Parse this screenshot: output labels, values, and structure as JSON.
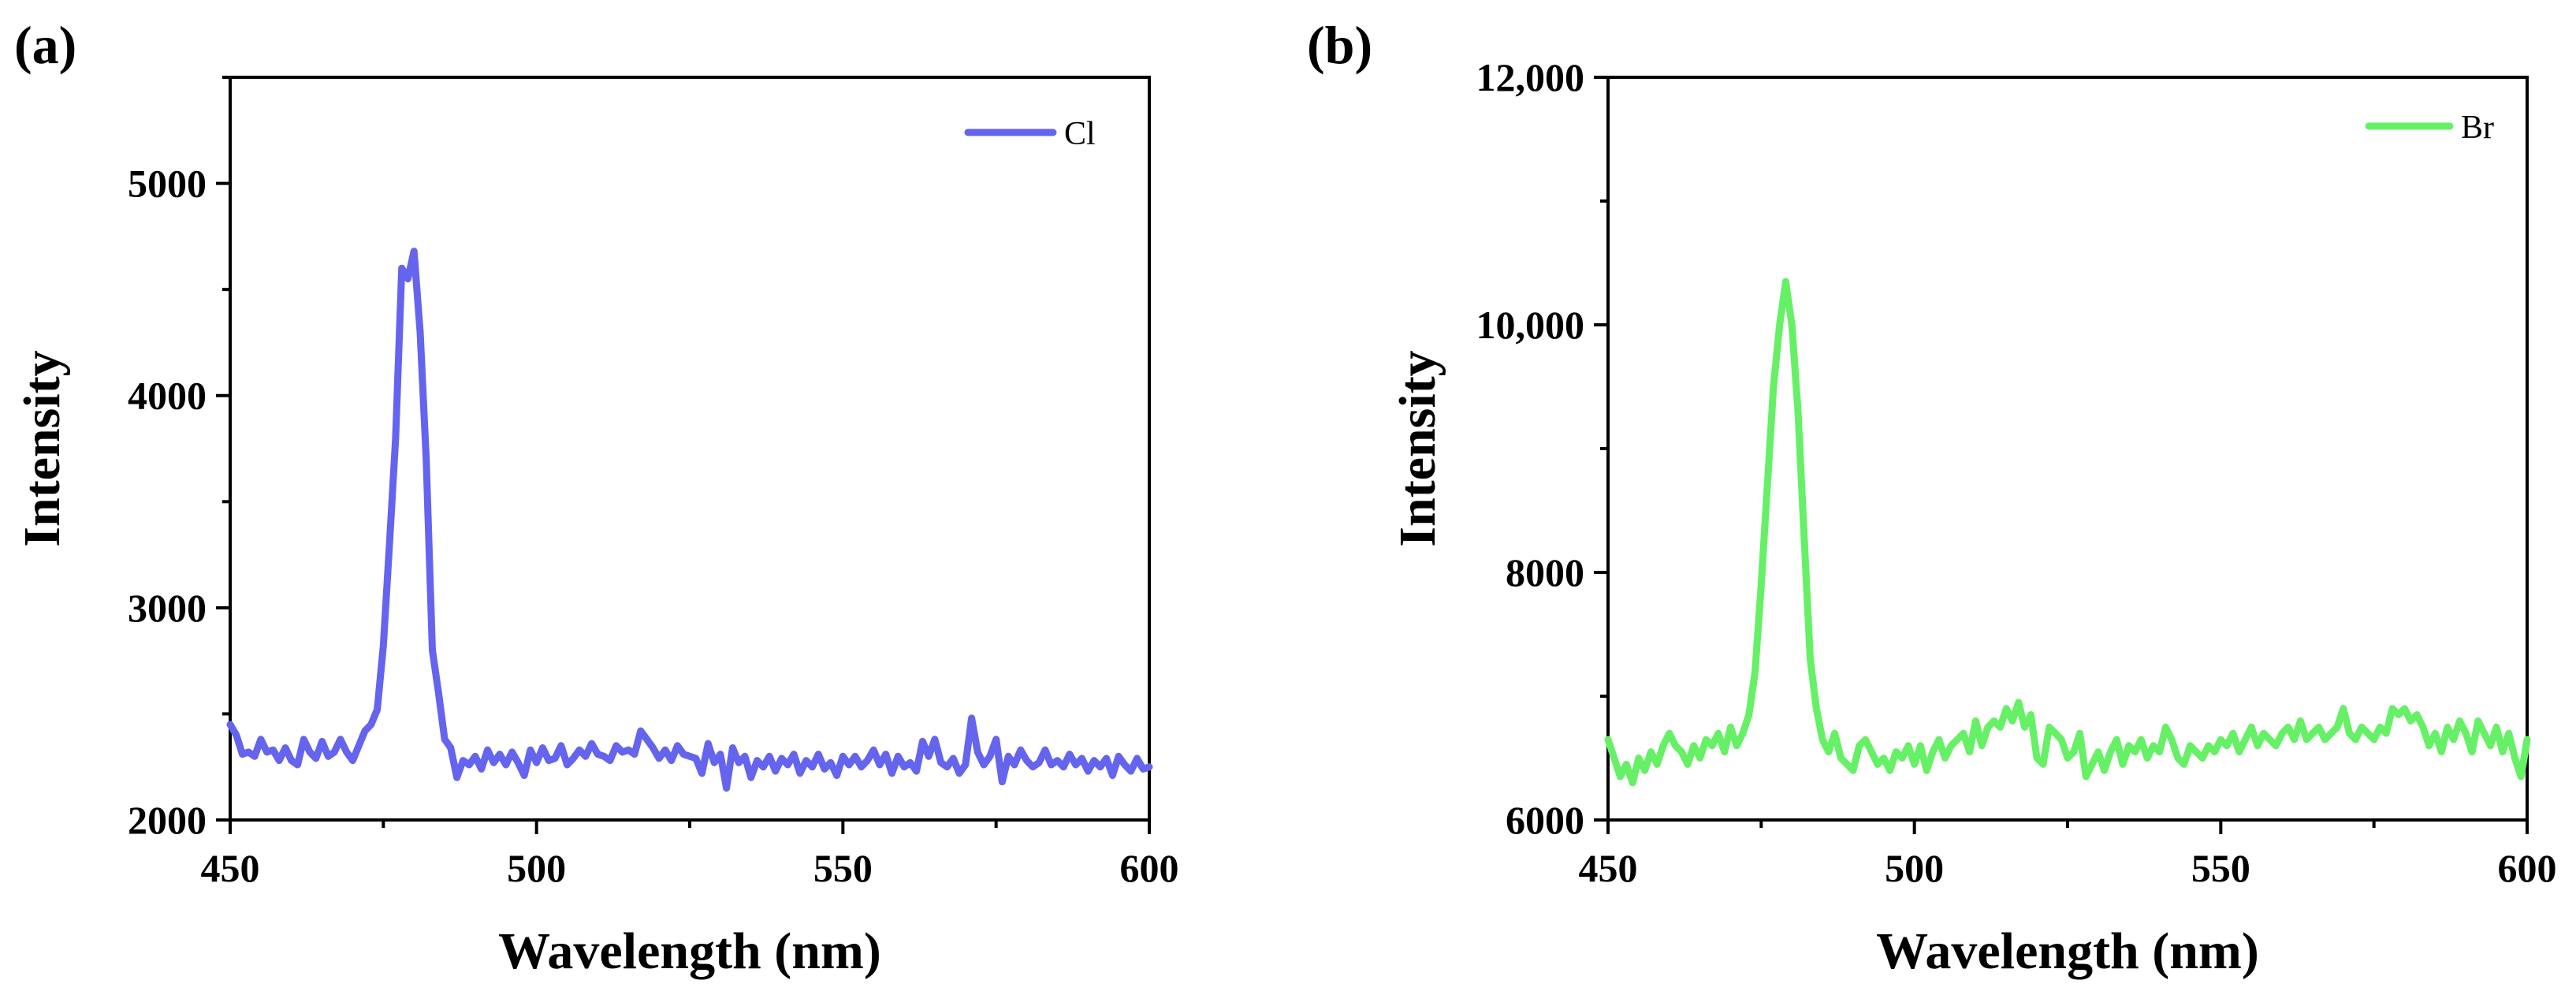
{
  "chart_data": [
    {
      "type": "line",
      "panel_label": "(a)",
      "title": "",
      "xlabel": "Wavelength (nm)",
      "ylabel": "Intensity",
      "xlim": [
        450,
        600
      ],
      "ylim": [
        2000,
        5500
      ],
      "x_ticks": [
        450,
        500,
        550,
        600
      ],
      "x_tick_labels": [
        "450",
        "500",
        "550",
        "600"
      ],
      "y_ticks": [
        2000,
        3000,
        4000,
        5000
      ],
      "y_tick_labels": [
        "2000",
        "3000",
        "4000",
        "5000"
      ],
      "legend_position": "top-right",
      "grid": false,
      "series": [
        {
          "name": "Cl",
          "color": "#6464ee",
          "x": [
            450,
            451,
            452,
            453,
            454,
            455,
            456,
            457,
            458,
            459,
            460,
            461,
            462,
            463,
            464,
            465,
            466,
            467,
            468,
            469,
            470,
            471,
            472,
            473,
            474,
            475,
            476,
            477,
            478,
            479,
            480,
            481,
            482,
            483,
            484,
            485,
            486,
            487,
            488,
            489,
            490,
            491,
            492,
            493,
            494,
            495,
            496,
            497,
            498,
            499,
            500,
            501,
            502,
            503,
            504,
            505,
            506,
            507,
            508,
            509,
            510,
            511,
            512,
            513,
            514,
            515,
            516,
            517,
            518,
            519,
            520,
            521,
            522,
            523,
            524,
            525,
            526,
            527,
            528,
            529,
            530,
            531,
            532,
            533,
            534,
            535,
            536,
            537,
            538,
            539,
            540,
            541,
            542,
            543,
            544,
            545,
            546,
            547,
            548,
            549,
            550,
            551,
            552,
            553,
            554,
            555,
            556,
            557,
            558,
            559,
            560,
            561,
            562,
            563,
            564,
            565,
            566,
            567,
            568,
            569,
            570,
            571,
            572,
            573,
            574,
            575,
            576,
            577,
            578,
            579,
            580,
            581,
            582,
            583,
            584,
            585,
            586,
            587,
            588,
            589,
            590,
            591,
            592,
            593,
            594,
            595,
            596,
            597,
            598,
            599,
            600
          ],
          "y": [
            2450,
            2400,
            2310,
            2320,
            2300,
            2380,
            2320,
            2330,
            2280,
            2340,
            2280,
            2260,
            2380,
            2320,
            2290,
            2370,
            2300,
            2320,
            2380,
            2320,
            2280,
            2350,
            2420,
            2450,
            2520,
            2820,
            3300,
            3800,
            4600,
            4550,
            4680,
            4300,
            3700,
            2800,
            2600,
            2380,
            2340,
            2200,
            2280,
            2260,
            2300,
            2240,
            2330,
            2270,
            2310,
            2260,
            2320,
            2270,
            2210,
            2330,
            2270,
            2340,
            2280,
            2290,
            2350,
            2260,
            2290,
            2330,
            2300,
            2360,
            2310,
            2300,
            2280,
            2350,
            2320,
            2330,
            2310,
            2420,
            2380,
            2340,
            2290,
            2330,
            2280,
            2350,
            2310,
            2300,
            2290,
            2220,
            2360,
            2270,
            2310,
            2150,
            2340,
            2270,
            2300,
            2200,
            2280,
            2250,
            2300,
            2230,
            2290,
            2260,
            2310,
            2220,
            2280,
            2250,
            2310,
            2240,
            2270,
            2210,
            2300,
            2260,
            2300,
            2250,
            2280,
            2330,
            2260,
            2310,
            2220,
            2300,
            2250,
            2270,
            2230,
            2370,
            2300,
            2380,
            2270,
            2250,
            2290,
            2220,
            2260,
            2480,
            2320,
            2260,
            2300,
            2380,
            2180,
            2300,
            2260,
            2330,
            2280,
            2250,
            2270,
            2330,
            2260,
            2280,
            2250,
            2310,
            2260,
            2290,
            2230,
            2280,
            2250,
            2290,
            2210,
            2300,
            2260,
            2230,
            2290,
            2240,
            2250
          ]
        }
      ]
    },
    {
      "type": "line",
      "panel_label": "(b)",
      "title": "",
      "xlabel": "Wavelength (nm)",
      "ylabel": "Intensity",
      "xlim": [
        450,
        600
      ],
      "ylim": [
        6000,
        12000
      ],
      "x_ticks": [
        450,
        500,
        550,
        600
      ],
      "x_tick_labels": [
        "450",
        "500",
        "550",
        "600"
      ],
      "y_ticks": [
        6000,
        8000,
        10000,
        12000
      ],
      "y_tick_labels": [
        "6000",
        "8000",
        "10,000",
        "12,000"
      ],
      "legend_position": "top-right",
      "grid": false,
      "series": [
        {
          "name": "Br",
          "color": "#66f066",
          "x": [
            450,
            451,
            452,
            453,
            454,
            455,
            456,
            457,
            458,
            459,
            460,
            461,
            462,
            463,
            464,
            465,
            466,
            467,
            468,
            469,
            470,
            471,
            472,
            473,
            474,
            475,
            476,
            477,
            478,
            479,
            480,
            481,
            482,
            483,
            484,
            485,
            486,
            487,
            488,
            489,
            490,
            491,
            492,
            493,
            494,
            495,
            496,
            497,
            498,
            499,
            500,
            501,
            502,
            503,
            504,
            505,
            506,
            507,
            508,
            509,
            510,
            511,
            512,
            513,
            514,
            515,
            516,
            517,
            518,
            519,
            520,
            521,
            522,
            523,
            524,
            525,
            526,
            527,
            528,
            529,
            530,
            531,
            532,
            533,
            534,
            535,
            536,
            537,
            538,
            539,
            540,
            541,
            542,
            543,
            544,
            545,
            546,
            547,
            548,
            549,
            550,
            551,
            552,
            553,
            554,
            555,
            556,
            557,
            558,
            559,
            560,
            561,
            562,
            563,
            564,
            565,
            566,
            567,
            568,
            569,
            570,
            571,
            572,
            573,
            574,
            575,
            576,
            577,
            578,
            579,
            580,
            581,
            582,
            583,
            584,
            585,
            586,
            587,
            588,
            589,
            590,
            591,
            592,
            593,
            594,
            595,
            596,
            597,
            598,
            599,
            600
          ],
          "y": [
            6650,
            6500,
            6350,
            6450,
            6300,
            6500,
            6400,
            6550,
            6450,
            6600,
            6700,
            6600,
            6550,
            6450,
            6600,
            6500,
            6650,
            6600,
            6700,
            6550,
            6750,
            6600,
            6700,
            6850,
            7200,
            7900,
            8700,
            9500,
            10000,
            10350,
            10000,
            9300,
            8300,
            7300,
            6900,
            6650,
            6550,
            6700,
            6500,
            6450,
            6400,
            6600,
            6650,
            6550,
            6450,
            6500,
            6400,
            6550,
            6500,
            6600,
            6450,
            6600,
            6400,
            6550,
            6650,
            6500,
            6600,
            6650,
            6700,
            6550,
            6800,
            6600,
            6750,
            6800,
            6750,
            6900,
            6800,
            6950,
            6750,
            6850,
            6500,
            6450,
            6750,
            6700,
            6650,
            6500,
            6550,
            6700,
            6350,
            6450,
            6550,
            6400,
            6550,
            6650,
            6450,
            6600,
            6550,
            6650,
            6500,
            6600,
            6550,
            6750,
            6650,
            6500,
            6450,
            6600,
            6550,
            6500,
            6600,
            6550,
            6650,
            6600,
            6700,
            6550,
            6650,
            6750,
            6600,
            6700,
            6650,
            6600,
            6700,
            6750,
            6650,
            6800,
            6650,
            6700,
            6750,
            6650,
            6700,
            6750,
            6900,
            6700,
            6650,
            6750,
            6700,
            6650,
            6750,
            6700,
            6900,
            6850,
            6900,
            6800,
            6850,
            6750,
            6600,
            6700,
            6550,
            6750,
            6650,
            6800,
            6700,
            6550,
            6800,
            6700,
            6600,
            6750,
            6550,
            6700,
            6500,
            6350,
            6650
          ]
        }
      ]
    }
  ]
}
